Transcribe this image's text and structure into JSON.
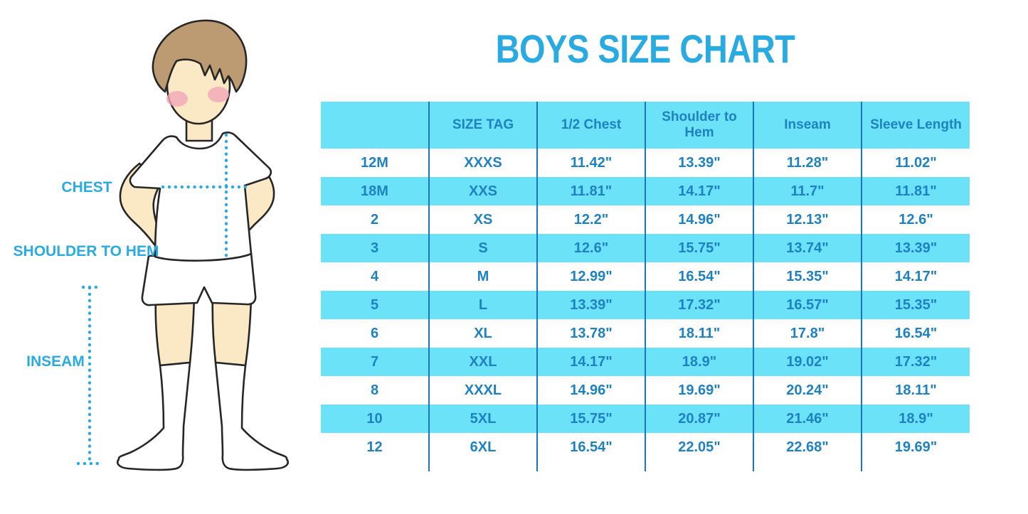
{
  "title": "BOYS SIZE CHART",
  "figure": {
    "chest_label": "CHEST",
    "shoulder_to_hem_label": "SHOULDER TO HEM",
    "inseam_label": "INSEAM",
    "description": "cartoon boy in white t-shirt, white shorts and knee socks with dotted measurement guides"
  },
  "colors": {
    "accent": "#29abe2",
    "row_cyan": "#6ce2f9",
    "table_text": "#1e81c2",
    "table_line": "#1a76b6"
  },
  "table": {
    "headers": [
      "",
      "SIZE TAG",
      "1/2 Chest",
      "Shoulder to Hem",
      "Inseam",
      "Sleeve Length"
    ],
    "rows": [
      [
        "12M",
        "XXXS",
        "11.42\"",
        "13.39\"",
        "11.28\"",
        "11.02\""
      ],
      [
        "18M",
        "XXS",
        "11.81\"",
        "14.17\"",
        "11.7\"",
        "11.81\""
      ],
      [
        "2",
        "XS",
        "12.2\"",
        "14.96\"",
        "12.13\"",
        "12.6\""
      ],
      [
        "3",
        "S",
        "12.6\"",
        "15.75\"",
        "13.74\"",
        "13.39\""
      ],
      [
        "4",
        "M",
        "12.99\"",
        "16.54\"",
        "15.35\"",
        "14.17\""
      ],
      [
        "5",
        "L",
        "13.39\"",
        "17.32\"",
        "16.57\"",
        "15.35\""
      ],
      [
        "6",
        "XL",
        "13.78\"",
        "18.11\"",
        "17.8\"",
        "16.54\""
      ],
      [
        "7",
        "XXL",
        "14.17\"",
        "18.9\"",
        "19.02\"",
        "17.32\""
      ],
      [
        "8",
        "XXXL",
        "14.96\"",
        "19.69\"",
        "20.24\"",
        "18.11\""
      ],
      [
        "10",
        "5XL",
        "15.75\"",
        "20.87\"",
        "21.46\"",
        "18.9\""
      ],
      [
        "12",
        "6XL",
        "16.54\"",
        "22.05\"",
        "22.68\"",
        "19.69\""
      ]
    ]
  }
}
